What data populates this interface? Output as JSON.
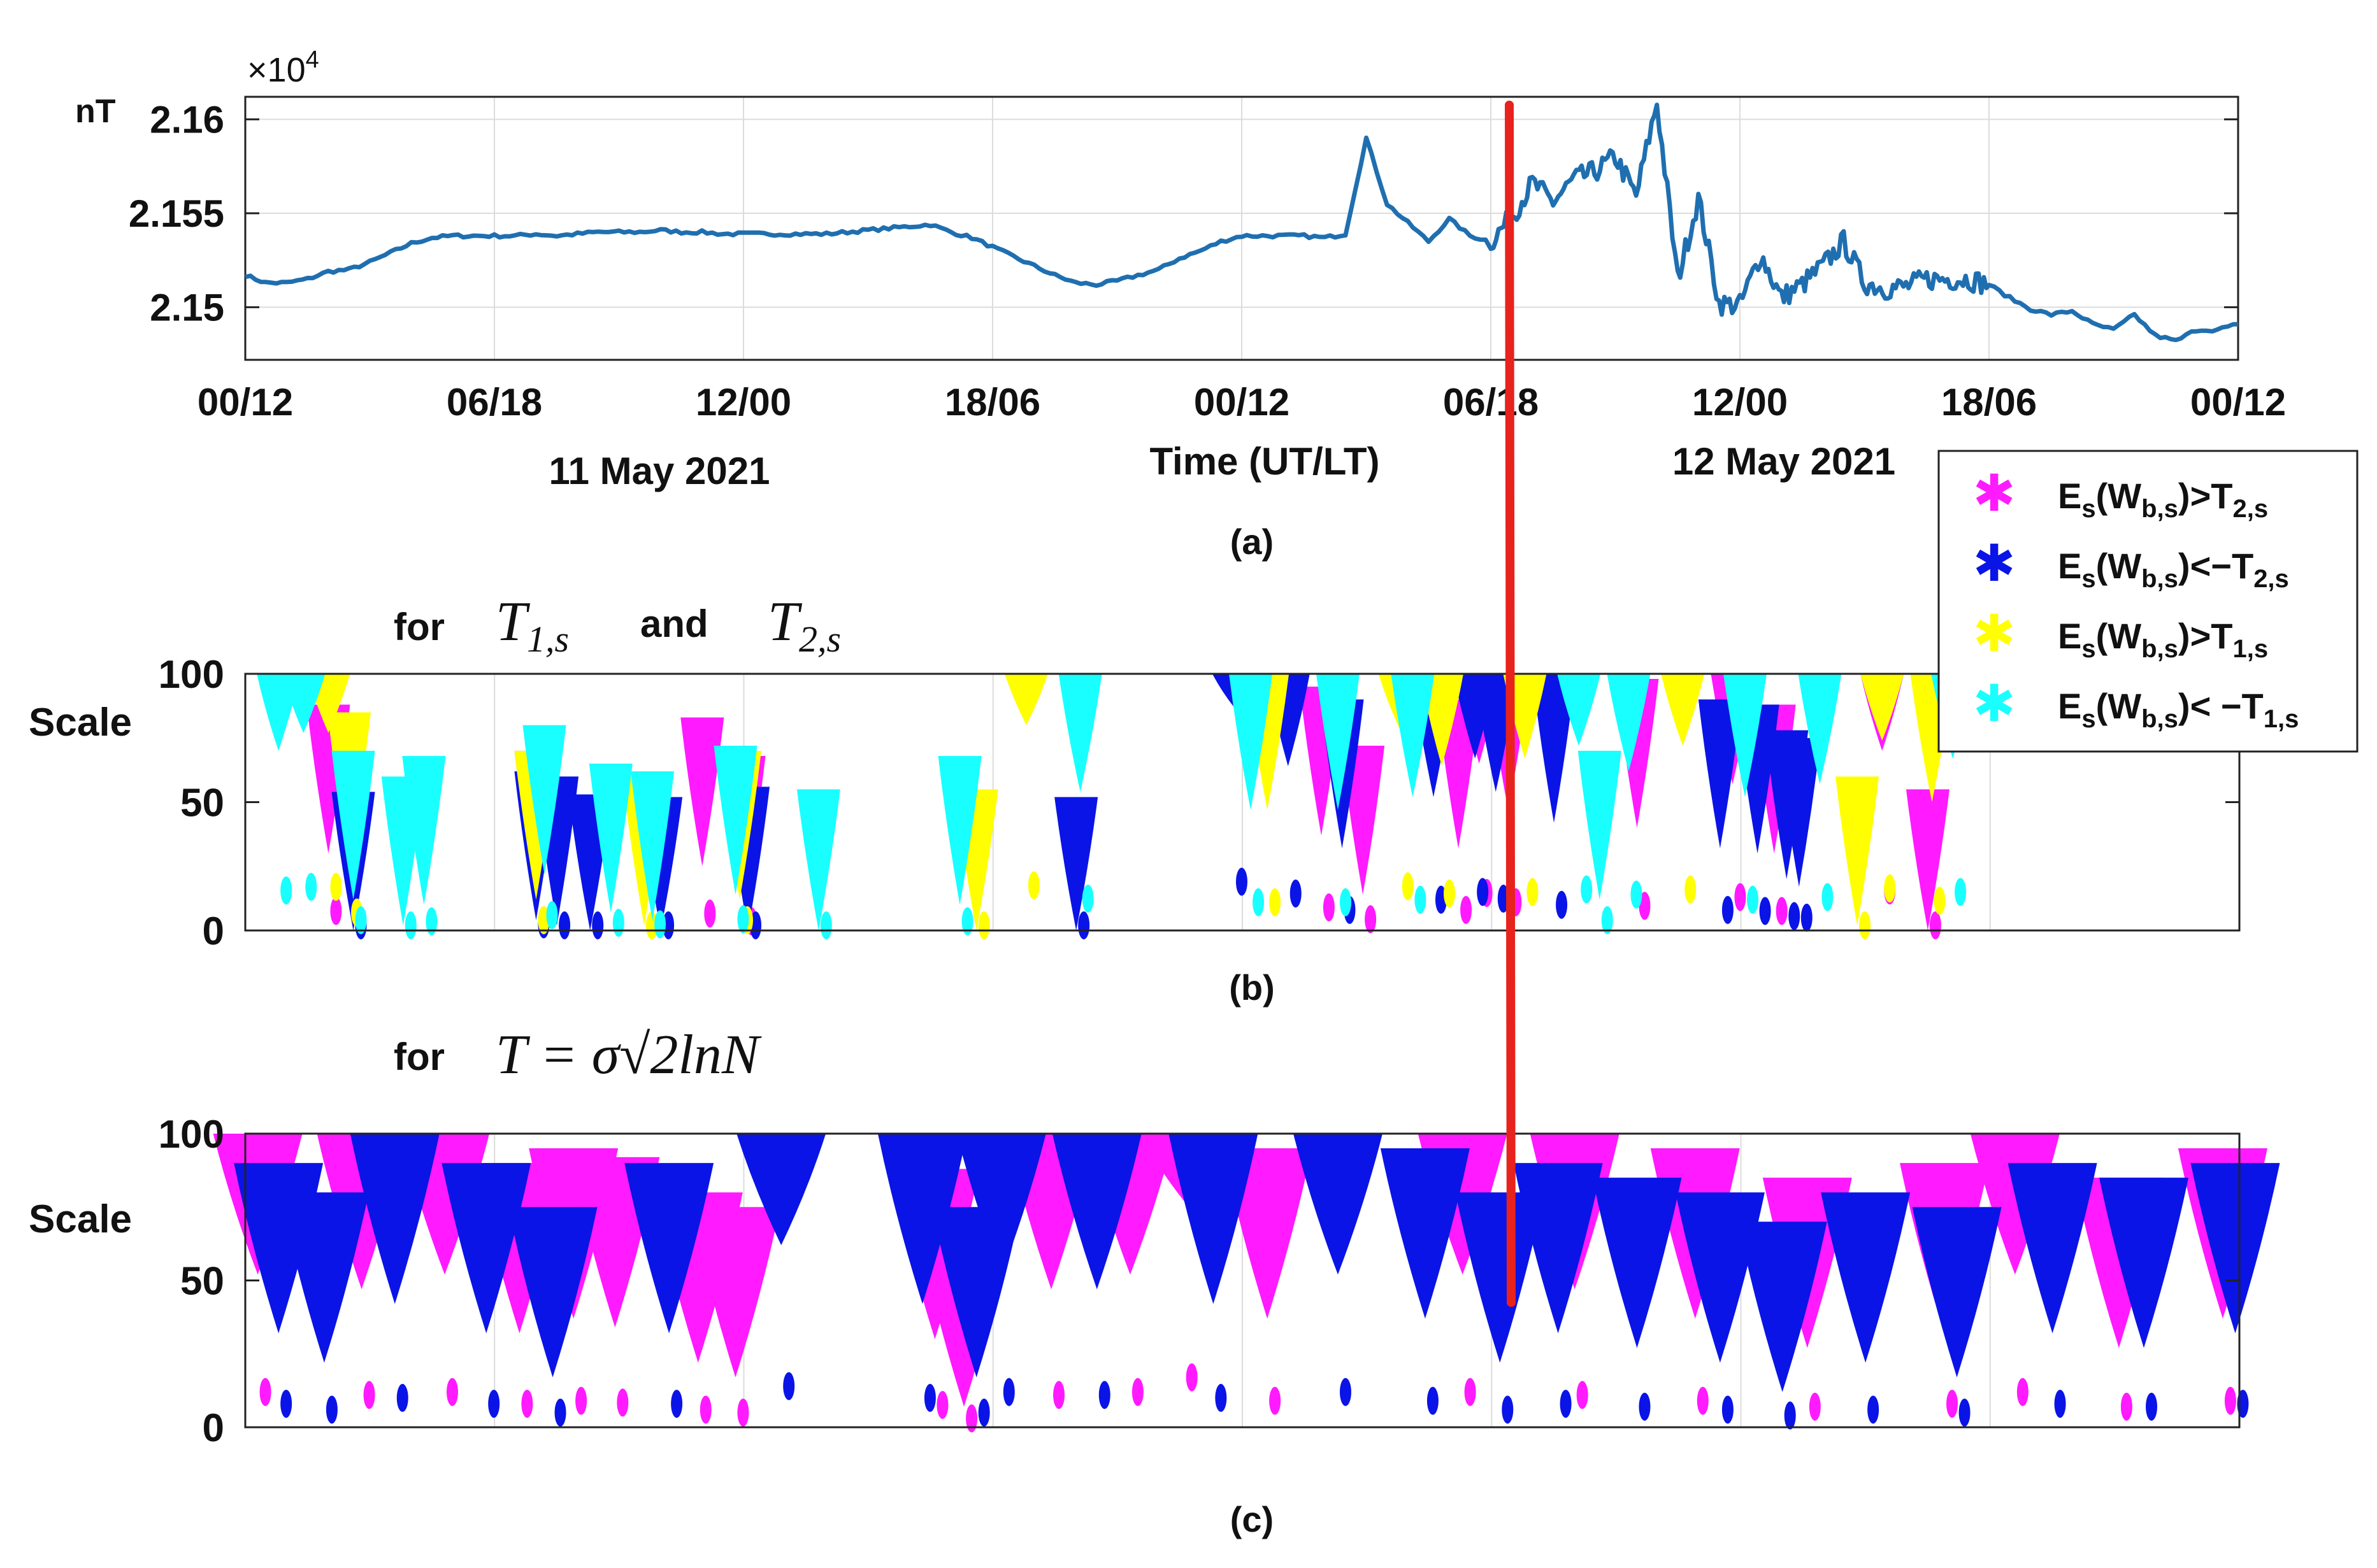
{
  "colors": {
    "line": "#1f6fb0",
    "red_marker": "#e8221c",
    "magenta": "#ff1aff",
    "blue": "#0a14e6",
    "yellow": "#ffff00",
    "cyan": "#19ffff",
    "grid": "#dcdcdc",
    "axis": "#222222"
  },
  "panel_a": {
    "caption": "(a)",
    "ylabel": "nT",
    "exponent_prefix": "×10",
    "exponent_power": "4",
    "ytick_labels": [
      "2.16",
      "2.155",
      "2.15"
    ],
    "xtick_labels": [
      "00/12",
      "06/18",
      "12/00",
      "18/06",
      "00/12",
      "06/18",
      "12/00",
      "18/06",
      "00/12"
    ],
    "date_left": "11 May 2021",
    "xlabel": "Time (UT/LT)",
    "date_right": "12 May 2021"
  },
  "panel_b": {
    "caption": "(b)",
    "title_prefix": "for",
    "title_t1": "T",
    "title_t1_sub": "1,s",
    "title_and": "and",
    "title_t2": "T",
    "title_t2_sub": "2,s",
    "ylabel": "Scale",
    "ytick_labels": [
      "100",
      "50",
      "0"
    ]
  },
  "panel_c": {
    "caption": "(c)",
    "title_prefix": "for",
    "title_formula": "T = σ√2lnN",
    "ylabel": "Scale",
    "ytick_labels": [
      "100",
      "50",
      "0"
    ]
  },
  "legend": {
    "entries": [
      {
        "text": "E",
        "sub1": "s",
        "mid": "(W",
        "sub2": "b,s",
        "rel": ")>T",
        "sub3": "2,s",
        "color": "#ff1aff"
      },
      {
        "text": "E",
        "sub1": "s",
        "mid": "(W",
        "sub2": "b,s",
        "rel": ")<−T",
        "sub3": "2,s",
        "color": "#0a14e6"
      },
      {
        "text": "E",
        "sub1": "s",
        "mid": "(W",
        "sub2": "b,s",
        "rel": ")>T",
        "sub3": "1,s",
        "color": "#ffff00"
      },
      {
        "text": "E",
        "sub1": "s",
        "mid": "(W",
        "sub2": "b,s",
        "rel": ")< −T",
        "sub3": "1,s",
        "color": "#19ffff"
      }
    ]
  },
  "chart_data": [
    {
      "type": "line",
      "title": "",
      "xlabel": "Time (UT/LT)",
      "ylabel": "nT",
      "y_scale_factor": 10000,
      "x_unit": "hours since 11 May 2021 00:00 UT",
      "xlim": [
        0,
        48
      ],
      "ylim": [
        2.1472,
        2.1612
      ],
      "x": [
        0,
        0.5,
        1,
        1.5,
        2,
        2.5,
        3,
        3.5,
        4,
        4.5,
        5,
        5.5,
        6,
        6.5,
        7,
        7.5,
        8,
        8.5,
        9,
        9.5,
        10,
        10.5,
        11,
        11.5,
        12,
        12.5,
        13,
        13.5,
        14,
        14.5,
        15,
        15.5,
        16,
        16.5,
        17,
        17.5,
        18,
        18.5,
        19,
        19.5,
        20,
        20.5,
        21,
        21.5,
        22,
        22.5,
        23,
        23.5,
        24,
        24.5,
        25,
        25.5,
        26,
        26.5,
        27,
        27.5,
        28,
        28.5,
        29,
        29.5,
        30,
        30.5,
        31,
        31.5,
        32,
        32.5,
        33,
        33.5,
        34,
        34.5,
        35,
        35.5,
        36,
        36.5,
        37,
        37.5,
        38,
        38.5,
        39,
        39.5,
        40,
        40.5,
        41,
        41.5,
        42,
        42.5,
        43,
        43.5,
        44,
        44.5,
        45,
        45.5,
        46,
        46.5,
        47,
        47.5,
        48
      ],
      "y": [
        2.1517,
        2.1513,
        2.1513,
        2.1515,
        2.1519,
        2.152,
        2.1524,
        2.1529,
        2.1534,
        2.1537,
        2.1538,
        2.1538,
        2.1538,
        2.1538,
        2.1539,
        2.1538,
        2.1539,
        2.154,
        2.154,
        2.154,
        2.1541,
        2.154,
        2.154,
        2.1539,
        2.1539,
        2.1539,
        2.1539,
        2.1539,
        2.1539,
        2.154,
        2.1541,
        2.1542,
        2.1543,
        2.1544,
        2.154,
        2.1537,
        2.1532,
        2.1527,
        2.1522,
        2.1517,
        2.1513,
        2.1512,
        2.1514,
        2.1517,
        2.152,
        2.1526,
        2.153,
        2.1535,
        2.1538,
        2.1538,
        2.1538,
        2.1538,
        2.1537,
        2.1539,
        2.159,
        2.1555,
        2.1545,
        2.1535,
        2.1547,
        2.1538,
        2.1535,
        2.1548,
        2.1566,
        2.1556,
        2.1568,
        2.1572,
        2.158,
        2.1559,
        2.1609,
        2.1515,
        2.1558,
        2.1502,
        2.1501,
        2.1528,
        2.1505,
        2.1512,
        2.1522,
        2.1535,
        2.1513,
        2.151,
        2.1511,
        2.1515,
        2.1515,
        2.1515,
        2.1512,
        2.1505,
        2.1499,
        2.1496,
        2.1498,
        2.1491,
        2.1488,
        2.1496,
        2.1485,
        2.1482,
        2.1488,
        2.1488,
        2.1491
      ],
      "ytick_values": [
        2.16,
        2.155,
        2.15
      ],
      "xtick_hours": [
        0,
        6,
        12,
        18,
        24,
        30,
        36,
        42,
        48
      ],
      "marker_line_hour": 30.5
    },
    {
      "type": "scatter",
      "title": "for T1,s and T2,s",
      "ylabel": "Scale",
      "xlim": [
        0,
        48
      ],
      "ylim": [
        0,
        100
      ],
      "ytick_values": [
        100,
        50,
        0
      ],
      "series": [
        {
          "name": "Es(Wb,s)>T2,s",
          "color": "#ff1aff",
          "points": [
            [
              2,
              38
            ],
            [
              7,
              20
            ],
            [
              11,
              33
            ],
            [
              12,
              18
            ],
            [
              25.9,
              45
            ],
            [
              26.9,
              22
            ],
            [
              29.2,
              40
            ],
            [
              29.7,
              73
            ],
            [
              30.4,
              55
            ],
            [
              33.5,
              48
            ],
            [
              35.8,
              65
            ],
            [
              36.8,
              38
            ],
            [
              39.4,
              78
            ],
            [
              40.5,
              5
            ]
          ]
        },
        {
          "name": "Es(Wb,s)<−T2,s",
          "color": "#0a14e6",
          "points": [
            [
              2.6,
              4
            ],
            [
              7,
              12
            ],
            [
              7.5,
              10
            ],
            [
              8.3,
              3
            ],
            [
              10,
              2
            ],
            [
              12.1,
              6
            ],
            [
              20,
              2
            ],
            [
              23.8,
              95
            ],
            [
              25.1,
              72
            ],
            [
              26.4,
              40
            ],
            [
              28.6,
              60
            ],
            [
              29.6,
              75
            ],
            [
              30.1,
              62
            ],
            [
              31.5,
              50
            ],
            [
              35.5,
              40
            ],
            [
              36.4,
              38
            ],
            [
              37.1,
              28
            ],
            [
              37.4,
              25
            ]
          ]
        },
        {
          "name": "Es(Wb,s)>T1,s",
          "color": "#ffff00",
          "points": [
            [
              2,
              85
            ],
            [
              2.5,
              35
            ],
            [
              7,
              20
            ],
            [
              9.6,
              10
            ],
            [
              11.9,
              20
            ],
            [
              17.6,
              5
            ],
            [
              18.8,
              88
            ],
            [
              24.6,
              55
            ],
            [
              27.8,
              86
            ],
            [
              28.8,
              72
            ],
            [
              30.8,
              75
            ],
            [
              34.6,
              80
            ],
            [
              39.4,
              82
            ],
            [
              40.6,
              58
            ],
            [
              38.8,
              10
            ]
          ]
        },
        {
          "name": "Es(Wb,s)<−T1,s",
          "color": "#19ffff",
          "points": [
            [
              0.8,
              78
            ],
            [
              1.4,
              85
            ],
            [
              2.6,
              20
            ],
            [
              3.8,
              10
            ],
            [
              4.3,
              18
            ],
            [
              7.2,
              30
            ],
            [
              8.8,
              15
            ],
            [
              9.8,
              12
            ],
            [
              11.8,
              22
            ],
            [
              13.8,
              5
            ],
            [
              17.2,
              18
            ],
            [
              20.1,
              62
            ],
            [
              24.2,
              55
            ],
            [
              26.3,
              55
            ],
            [
              28.1,
              60
            ],
            [
              32.1,
              80
            ],
            [
              33.3,
              70
            ],
            [
              36.1,
              60
            ],
            [
              37.9,
              65
            ],
            [
              41.1,
              75
            ],
            [
              32.6,
              20
            ]
          ]
        }
      ]
    },
    {
      "type": "scatter",
      "title": "for T = σ√(2lnN)",
      "ylabel": "Scale",
      "xlim": [
        0,
        48
      ],
      "ylim": [
        0,
        100
      ],
      "ytick_values": [
        100,
        50,
        0
      ],
      "series": [
        {
          "name": "Es(Wb,s)>T2,s",
          "color": "#ff1aff",
          "points": [
            [
              0.3,
              60
            ],
            [
              2.8,
              55
            ],
            [
              4.8,
              60
            ],
            [
              6.6,
              40
            ],
            [
              7.9,
              45
            ],
            [
              8.9,
              42
            ],
            [
              10.9,
              30
            ],
            [
              11.8,
              25
            ],
            [
              16.6,
              38
            ],
            [
              17.3,
              15
            ],
            [
              19.4,
              55
            ],
            [
              21.3,
              60
            ],
            [
              22.6,
              85
            ],
            [
              24.6,
              45
            ],
            [
              29.3,
              60
            ],
            [
              32,
              55
            ],
            [
              34.9,
              45
            ],
            [
              37.6,
              35
            ],
            [
              40.9,
              40
            ],
            [
              42.6,
              60
            ],
            [
              45.1,
              35
            ],
            [
              47.6,
              45
            ]
          ]
        },
        {
          "name": "Es(Wb,s)<−T2,s",
          "color": "#0a14e6",
          "points": [
            [
              0.8,
              40
            ],
            [
              1.9,
              30
            ],
            [
              3.6,
              50
            ],
            [
              5.8,
              40
            ],
            [
              7.4,
              25
            ],
            [
              10.2,
              40
            ],
            [
              12.9,
              70
            ],
            [
              16.3,
              50
            ],
            [
              17.6,
              25
            ],
            [
              18.2,
              60
            ],
            [
              20.5,
              55
            ],
            [
              23.3,
              50
            ],
            [
              26.3,
              60
            ],
            [
              28.4,
              45
            ],
            [
              30.2,
              30
            ],
            [
              31.6,
              40
            ],
            [
              33.5,
              35
            ],
            [
              35.5,
              30
            ],
            [
              37,
              20
            ],
            [
              39,
              30
            ],
            [
              41.2,
              25
            ],
            [
              43.5,
              40
            ],
            [
              45.7,
              35
            ],
            [
              47.9,
              40
            ]
          ]
        }
      ]
    }
  ]
}
